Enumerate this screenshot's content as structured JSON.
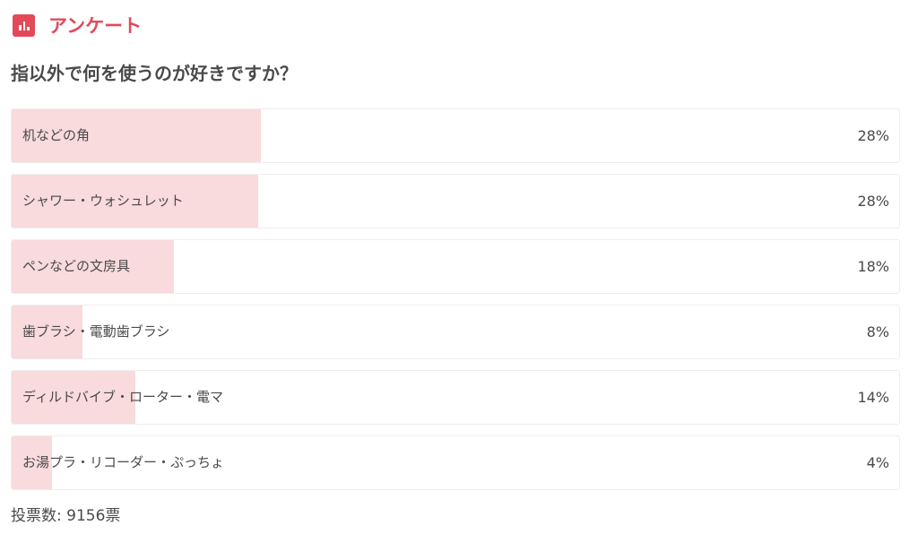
{
  "header": {
    "title": "アンケート",
    "icon": "bar-chart-icon",
    "accent": "#e24a5a"
  },
  "question": "指以外で何を使うのが好きですか？",
  "options": [
    {
      "label": "机などの角",
      "percent": "28%",
      "fill": 28.1
    },
    {
      "label": "シャワー・ウォシュレット",
      "percent": "28%",
      "fill": 27.8
    },
    {
      "label": "ペンなどの文房具",
      "percent": "18%",
      "fill": 18.3
    },
    {
      "label": "歯ブラシ・電動歯ブラシ",
      "percent": "8%",
      "fill": 8.0
    },
    {
      "label": "ディルドバイブ・ローター・電マ",
      "percent": "14%",
      "fill": 13.9
    },
    {
      "label": "お湯プラ・リコーダー・ぷっちょ",
      "percent": "4%",
      "fill": 4.5
    }
  ],
  "fill_color": "#f9dadd",
  "votes": "投票数: 9156票"
}
